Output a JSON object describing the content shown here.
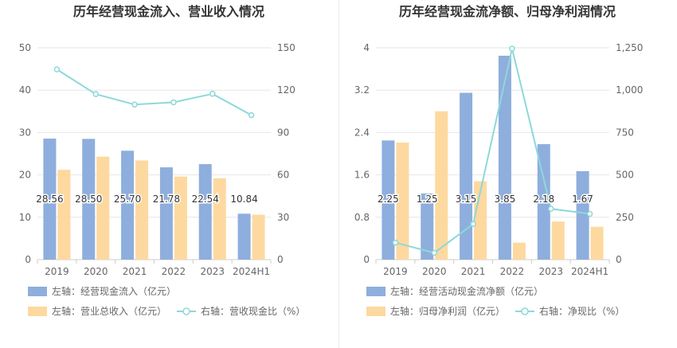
{
  "chart_data": [
    {
      "type": "bar",
      "title": "历年经营现金流入、营业收入情况",
      "categories": [
        "2019",
        "2020",
        "2021",
        "2022",
        "2023",
        "2024H1"
      ],
      "left_axis": {
        "min": 0,
        "max": 50,
        "ticks": [
          "0",
          "10",
          "20",
          "30",
          "40",
          "50"
        ]
      },
      "right_axis": {
        "min": 0,
        "max": 150,
        "ticks": [
          "0",
          "30",
          "60",
          "90",
          "120",
          "150"
        ]
      },
      "series": [
        {
          "name": "左轴：经营现金流入（亿元）",
          "type": "bar",
          "axis": "left",
          "color": "#8eaedd",
          "values": [
            28.56,
            28.5,
            25.7,
            21.78,
            22.54,
            10.84
          ],
          "labels": [
            "28.56",
            "28.50",
            "25.70",
            "21.78",
            "22.54",
            "10.84"
          ]
        },
        {
          "name": "左轴：营业总收入（亿元）",
          "type": "bar",
          "axis": "left",
          "color": "#fdd9a0",
          "values": [
            21.2,
            24.3,
            23.4,
            19.6,
            19.2,
            10.6
          ]
        },
        {
          "name": "右轴：营收现金比（%）",
          "type": "line",
          "axis": "right",
          "color": "#8ed8d8",
          "values": [
            134.7,
            117.2,
            109.8,
            111.4,
            117.4,
            102.3
          ]
        }
      ],
      "grid": true,
      "legend": "bottom"
    },
    {
      "type": "bar",
      "title": "历年经营现金流净额、归母净利润情况",
      "categories": [
        "2019",
        "2020",
        "2021",
        "2022",
        "2023",
        "2024H1"
      ],
      "left_axis": {
        "min": 0,
        "max": 4,
        "ticks": [
          "0",
          "0.8",
          "1.6",
          "2.4",
          "3.2",
          "4"
        ]
      },
      "right_axis": {
        "min": 0,
        "max": 1250,
        "ticks": [
          "0",
          "250",
          "500",
          "750",
          "1,000",
          "1,250"
        ]
      },
      "series": [
        {
          "name": "左轴：经营活动现金流净额（亿元）",
          "type": "bar",
          "axis": "left",
          "color": "#8eaedd",
          "values": [
            2.25,
            1.25,
            3.15,
            3.85,
            2.18,
            1.67
          ],
          "labels": [
            "2.25",
            "1.25",
            "3.15",
            "3.85",
            "2.18",
            "1.67"
          ]
        },
        {
          "name": "左轴：归母净利润（亿元）",
          "type": "bar",
          "axis": "left",
          "color": "#fdd9a0",
          "values": [
            2.21,
            2.8,
            1.48,
            0.32,
            0.72,
            0.62
          ]
        },
        {
          "name": "右轴：净现比（%）",
          "type": "line",
          "axis": "right",
          "color": "#8ed8d8",
          "values": [
            100,
            40,
            210,
            1245,
            300,
            270
          ]
        }
      ],
      "grid": true,
      "legend": "bottom"
    }
  ]
}
